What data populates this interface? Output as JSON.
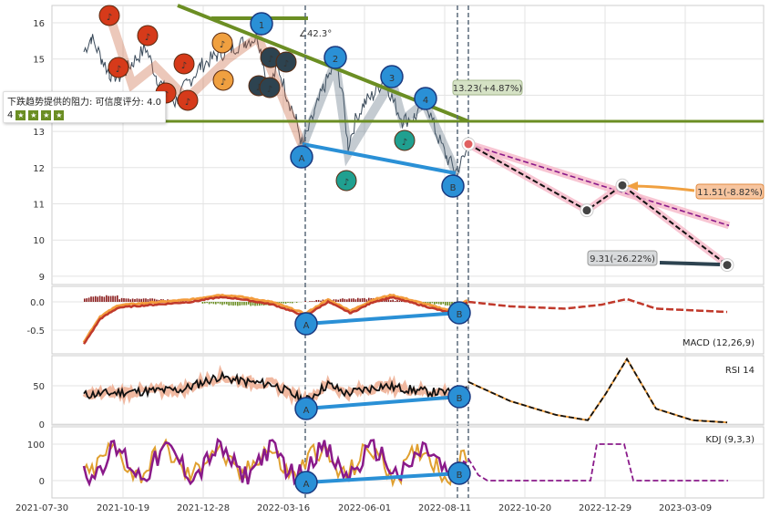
{
  "chart_data": {
    "type": "line",
    "x_ticks": [
      "2021-07-30",
      "2021-10-19",
      "2021-12-28",
      "2022-03-16",
      "2022-06-01",
      "2022-08-11",
      "2022-10-20",
      "2022-12-29",
      "2023-03-09"
    ],
    "main": {
      "y_ticks": [
        "16",
        "15",
        "14",
        "13",
        "12",
        "11",
        "10",
        "9"
      ],
      "angle_label": "∠42.3°",
      "resistance_label": "13.23(+4.87%)",
      "target_mid_label": "11.51(-8.82%)",
      "target_low_label": "9.31(-26.22%)",
      "wave_labels": [
        "1",
        "2",
        "3",
        "4",
        "A",
        "B"
      ],
      "projection": {
        "start": 12.65,
        "mid_low": 10.8,
        "mid_high": 11.51,
        "end": 9.31
      },
      "resistance_level": 13.23
    },
    "macd": {
      "label": "MACD (12,26,9)",
      "y_ticks": [
        "0.0",
        "-0.5"
      ]
    },
    "rsi": {
      "label": "RSI 14",
      "y_ticks": [
        "50",
        "0"
      ]
    },
    "kdj": {
      "label": "KDJ (9,3,3)",
      "y_ticks": [
        "100",
        "0"
      ]
    },
    "colors": {
      "price": "#3a4a5a",
      "trend": "#6b8e23",
      "support": "#2a90d6",
      "projection": "#d44a9a",
      "music_red": "#d63a1a",
      "music_orange": "#f0a040",
      "music_dark": "#2d4350"
    }
  },
  "tooltip": {
    "text": "下跌趋势提供的阻力: 可信度评分: 4.0",
    "score_prefix": "4"
  }
}
